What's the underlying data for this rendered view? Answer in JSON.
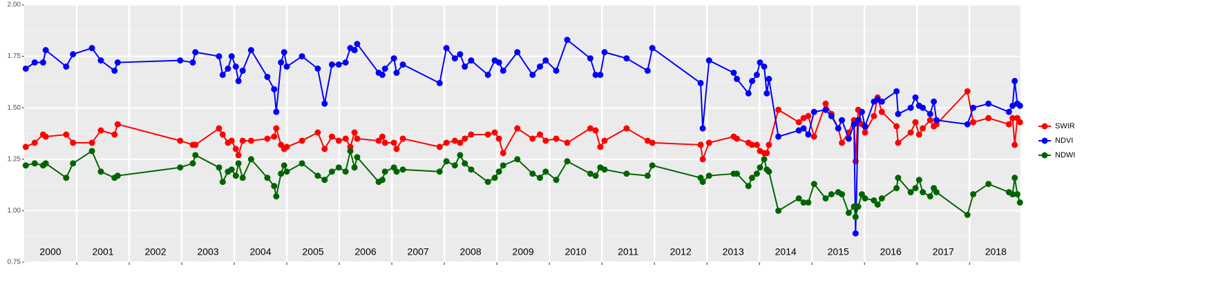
{
  "chart_data": {
    "type": "line",
    "x": [
      2000.03,
      2000.2,
      2000.36,
      2000.41,
      2000.8,
      2000.93,
      2001.29,
      2001.46,
      2001.72,
      2001.78,
      2002.97,
      2003.21,
      2003.26,
      2003.71,
      2003.78,
      2003.88,
      2003.95,
      2004.03,
      2004.08,
      2004.16,
      2004.32,
      2004.63,
      2004.76,
      2004.8,
      2004.89,
      2004.95,
      2005.0,
      2005.29,
      2005.59,
      2005.72,
      2005.86,
      2005.99,
      2006.12,
      2006.21,
      2006.29,
      2006.34,
      2006.75,
      2006.82,
      2006.87,
      2007.04,
      2007.09,
      2007.21,
      2007.91,
      2008.04,
      2008.2,
      2008.3,
      2008.39,
      2008.51,
      2008.83,
      2008.96,
      2009.04,
      2009.12,
      2009.39,
      2009.68,
      2009.82,
      2009.93,
      2010.13,
      2010.34,
      2010.78,
      2010.88,
      2010.97,
      2011.05,
      2011.47,
      2011.87,
      2011.96,
      2012.88,
      2012.92,
      2013.04,
      2013.51,
      2013.57,
      2013.79,
      2013.86,
      2013.95,
      2014.01,
      2014.09,
      2014.14,
      2014.18,
      2014.36,
      2014.75,
      2014.84,
      2014.93,
      2015.04,
      2015.26,
      2015.37,
      2015.5,
      2015.57,
      2015.7,
      2015.8,
      2015.83,
      2015.88,
      2015.95,
      2016.01,
      2016.18,
      2016.25,
      2016.33,
      2016.61,
      2016.64,
      2016.88,
      2016.97,
      2017.04,
      2017.11,
      2017.25,
      2017.32,
      2017.37,
      2017.96,
      2018.07,
      2018.36,
      2018.75,
      2018.82,
      2018.86,
      2018.91,
      2018.96
    ],
    "series": [
      {
        "name": "SWIR",
        "color": "#ff0000",
        "values": [
          1.31,
          1.33,
          1.37,
          1.36,
          1.37,
          1.33,
          1.33,
          1.39,
          1.37,
          1.42,
          1.34,
          1.32,
          1.32,
          1.4,
          1.37,
          1.33,
          1.34,
          1.3,
          1.27,
          1.34,
          1.34,
          1.35,
          1.36,
          1.4,
          1.32,
          1.3,
          1.31,
          1.34,
          1.38,
          1.3,
          1.36,
          1.34,
          1.35,
          1.31,
          1.38,
          1.35,
          1.34,
          1.36,
          1.33,
          1.33,
          1.3,
          1.35,
          1.31,
          1.33,
          1.34,
          1.33,
          1.35,
          1.37,
          1.37,
          1.38,
          1.35,
          1.28,
          1.4,
          1.35,
          1.37,
          1.34,
          1.35,
          1.33,
          1.4,
          1.39,
          1.31,
          1.34,
          1.4,
          1.34,
          1.33,
          1.32,
          1.25,
          1.33,
          1.36,
          1.35,
          1.33,
          1.32,
          1.32,
          1.29,
          1.28,
          1.28,
          1.32,
          1.49,
          1.43,
          1.45,
          1.46,
          1.36,
          1.52,
          1.47,
          1.4,
          1.33,
          1.38,
          1.44,
          1.24,
          1.49,
          1.42,
          1.38,
          1.46,
          1.55,
          1.48,
          1.41,
          1.33,
          1.38,
          1.43,
          1.37,
          1.4,
          1.44,
          1.41,
          1.42,
          1.58,
          1.43,
          1.45,
          1.42,
          1.45,
          1.32,
          1.45,
          1.43
        ]
      },
      {
        "name": "NDVI",
        "color": "#0000ff",
        "values": [
          1.69,
          1.72,
          1.72,
          1.78,
          1.7,
          1.76,
          1.79,
          1.73,
          1.68,
          1.72,
          1.73,
          1.72,
          1.77,
          1.75,
          1.66,
          1.69,
          1.75,
          1.7,
          1.63,
          1.68,
          1.78,
          1.65,
          1.59,
          1.48,
          1.72,
          1.77,
          1.7,
          1.75,
          1.69,
          1.52,
          1.71,
          1.71,
          1.72,
          1.79,
          1.78,
          1.81,
          1.67,
          1.66,
          1.69,
          1.74,
          1.67,
          1.71,
          1.62,
          1.79,
          1.74,
          1.76,
          1.7,
          1.73,
          1.66,
          1.73,
          1.72,
          1.68,
          1.77,
          1.66,
          1.7,
          1.73,
          1.68,
          1.83,
          1.74,
          1.66,
          1.66,
          1.77,
          1.74,
          1.68,
          1.79,
          1.62,
          1.4,
          1.73,
          1.67,
          1.64,
          1.57,
          1.63,
          1.66,
          1.72,
          1.7,
          1.57,
          1.64,
          1.36,
          1.39,
          1.4,
          1.37,
          1.48,
          1.49,
          1.46,
          1.4,
          1.44,
          1.35,
          1.42,
          0.89,
          1.44,
          1.48,
          1.41,
          1.53,
          1.54,
          1.53,
          1.58,
          1.47,
          1.5,
          1.55,
          1.51,
          1.5,
          1.47,
          1.53,
          1.44,
          1.42,
          1.5,
          1.52,
          1.48,
          1.51,
          1.63,
          1.52,
          1.51
        ]
      },
      {
        "name": "NDWI",
        "color": "#006400",
        "values": [
          1.22,
          1.23,
          1.22,
          1.23,
          1.16,
          1.23,
          1.29,
          1.19,
          1.16,
          1.17,
          1.21,
          1.23,
          1.27,
          1.21,
          1.14,
          1.19,
          1.2,
          1.17,
          1.23,
          1.16,
          1.25,
          1.16,
          1.12,
          1.07,
          1.18,
          1.22,
          1.19,
          1.23,
          1.17,
          1.15,
          1.19,
          1.21,
          1.19,
          1.29,
          1.21,
          1.26,
          1.14,
          1.15,
          1.19,
          1.21,
          1.19,
          1.2,
          1.19,
          1.24,
          1.22,
          1.27,
          1.23,
          1.2,
          1.14,
          1.16,
          1.19,
          1.22,
          1.25,
          1.18,
          1.16,
          1.19,
          1.15,
          1.24,
          1.18,
          1.17,
          1.21,
          1.2,
          1.18,
          1.17,
          1.22,
          1.16,
          1.14,
          1.17,
          1.18,
          1.18,
          1.12,
          1.16,
          1.18,
          1.21,
          1.25,
          1.2,
          1.19,
          1.0,
          1.06,
          1.04,
          1.04,
          1.13,
          1.06,
          1.08,
          1.09,
          1.08,
          0.99,
          1.02,
          0.97,
          1.02,
          1.08,
          1.06,
          1.05,
          1.03,
          1.06,
          1.11,
          1.16,
          1.09,
          1.11,
          1.15,
          1.09,
          1.07,
          1.11,
          1.09,
          0.98,
          1.08,
          1.13,
          1.09,
          1.08,
          1.16,
          1.08,
          1.04
        ]
      }
    ],
    "xlim": [
      2000,
      2018.97
    ],
    "xticks": [
      2001,
      2002,
      2003,
      2004,
      2005,
      2006,
      2007,
      2008,
      2009,
      2010,
      2011,
      2012,
      2013,
      2014,
      2015,
      2016,
      2017,
      2018
    ],
    "ylim": [
      0.75,
      2.0
    ],
    "yticks": [
      {
        "value": 0.75,
        "label": "0.75"
      },
      {
        "value": 1,
        "label": "1.00"
      },
      {
        "value": 1.25,
        "label": "1.25"
      },
      {
        "value": 1.5,
        "label": "1.50"
      },
      {
        "value": 1.75,
        "label": "1.75"
      },
      {
        "value": 2,
        "label": "2.00"
      }
    ],
    "annotations": [
      {
        "x": 2000.5,
        "text": "2000"
      },
      {
        "x": 2001.5,
        "text": "2001"
      },
      {
        "x": 2002.5,
        "text": "2002"
      },
      {
        "x": 2003.5,
        "text": "2003"
      },
      {
        "x": 2004.5,
        "text": "2004"
      },
      {
        "x": 2005.5,
        "text": "2005"
      },
      {
        "x": 2006.5,
        "text": "2006"
      },
      {
        "x": 2007.5,
        "text": "2007"
      },
      {
        "x": 2008.5,
        "text": "2008"
      },
      {
        "x": 2009.5,
        "text": "2009"
      },
      {
        "x": 2010.5,
        "text": "2010"
      },
      {
        "x": 2011.5,
        "text": "2011"
      },
      {
        "x": 2012.5,
        "text": "2012"
      },
      {
        "x": 2013.5,
        "text": "2013"
      },
      {
        "x": 2014.5,
        "text": "2014"
      },
      {
        "x": 2015.5,
        "text": "2015"
      },
      {
        "x": 2016.5,
        "text": "2016"
      },
      {
        "x": 2017.5,
        "text": "2017"
      },
      {
        "x": 2018.5,
        "text": "2018"
      }
    ],
    "grid": true,
    "legend": "right"
  }
}
